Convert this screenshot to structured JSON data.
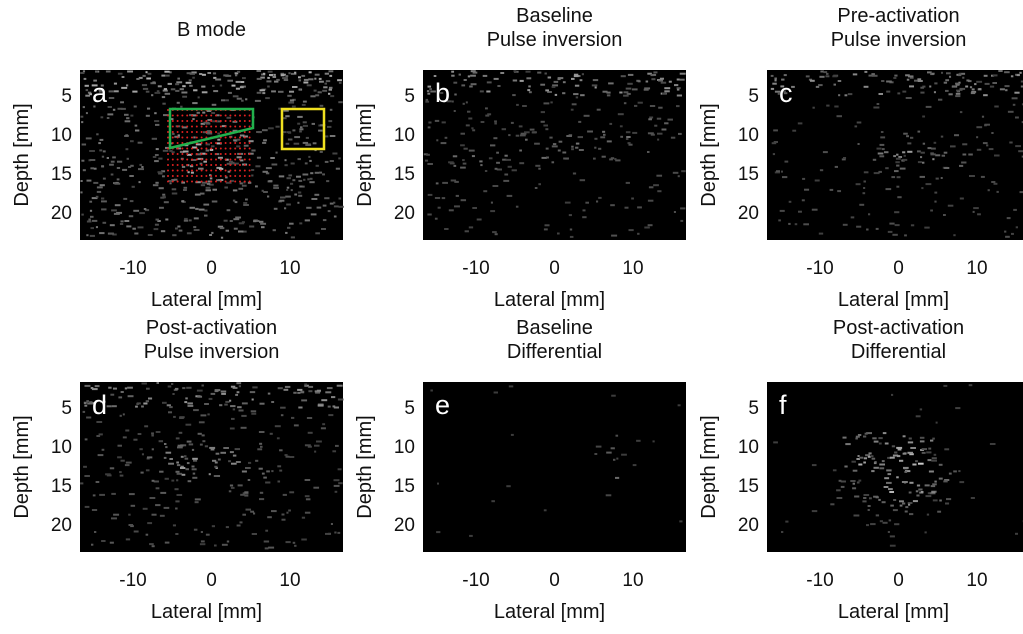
{
  "panels": [
    {
      "letter": "a",
      "title": [
        "B mode"
      ],
      "xlabel": "Lateral [mm]",
      "ylabel": "Depth [mm]",
      "xticks": [
        -10,
        0,
        10
      ],
      "yticks": [
        5,
        10,
        15,
        20
      ]
    },
    {
      "letter": "b",
      "title": [
        "Baseline",
        "Pulse inversion"
      ],
      "xlabel": "Lateral [mm]",
      "ylabel": "Depth [mm]",
      "xticks": [
        -10,
        0,
        10
      ],
      "yticks": [
        5,
        10,
        15,
        20
      ]
    },
    {
      "letter": "c",
      "title": [
        "Pre-activation",
        "Pulse inversion"
      ],
      "xlabel": "Lateral [mm]",
      "ylabel": "Depth [mm]",
      "xticks": [
        -10,
        0,
        10
      ],
      "yticks": [
        5,
        10,
        15,
        20
      ]
    },
    {
      "letter": "d",
      "title": [
        "Post-activation",
        "Pulse inversion"
      ],
      "xlabel": "Lateral [mm]",
      "ylabel": "Depth [mm]",
      "xticks": [
        -10,
        0,
        10
      ],
      "yticks": [
        5,
        10,
        15,
        20
      ]
    },
    {
      "letter": "e",
      "title": [
        "Baseline",
        "Differential"
      ],
      "xlabel": "Lateral [mm]",
      "ylabel": "Depth [mm]",
      "xticks": [
        -10,
        0,
        10
      ],
      "yticks": [
        5,
        10,
        15,
        20
      ]
    },
    {
      "letter": "f",
      "title": [
        "Post-activation",
        "Differential"
      ],
      "xlabel": "Lateral [mm]",
      "ylabel": "Depth [mm]",
      "xticks": [
        -10,
        0,
        10
      ],
      "yticks": [
        5,
        10,
        15,
        20
      ]
    }
  ]
}
